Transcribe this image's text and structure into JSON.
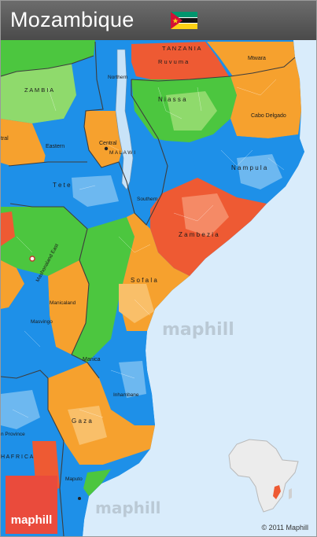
{
  "header": {
    "title": "Mozambique"
  },
  "colors": {
    "ocean": "#d9ecfb",
    "blue": "#1e90e8",
    "light_blue": "#6db8f0",
    "green": "#4cc63f",
    "light_green": "#8fda6c",
    "orange": "#f6a12e",
    "light_orange": "#f9bf69",
    "red": "#ee5a33",
    "light_red": "#f58a66",
    "brand": "#ea4b3c"
  },
  "flag_icon": "mozambique-flag-icon",
  "map_labels": {
    "tanzania": "T A N Z A N I A",
    "ruvuma": "R u v u m a",
    "mtwara": "Mtwara",
    "zambia": "Z A M B I A",
    "northern": "Northern",
    "niassa": "N i a s s a",
    "cabo_delgado": "Cabo Delgado",
    "central_left": "tral",
    "central": "Central",
    "malawi": "M A L A W I",
    "eastern": "Eastern",
    "tete": "T e t e",
    "nampula": "N a m p u l a",
    "southern": "Southern",
    "zambezia": "Z a m b e z i a",
    "mashonaland_east": "Mashonaland East",
    "manicaland": "Manicaland",
    "sofala": "S o f a l a",
    "masvingo": "Masvingo",
    "manica": "Manica",
    "inhambane": "Inhambane",
    "gaza": "G a z a",
    "maputo": "Maputo",
    "limpopo_province": "n Province",
    "south_africa": "H A F R I C A"
  },
  "watermark": "maphill",
  "logo": {
    "text": "maphill"
  },
  "copyright": "© 2011 Maphill",
  "inset_map": {
    "name": "africa-locator"
  }
}
